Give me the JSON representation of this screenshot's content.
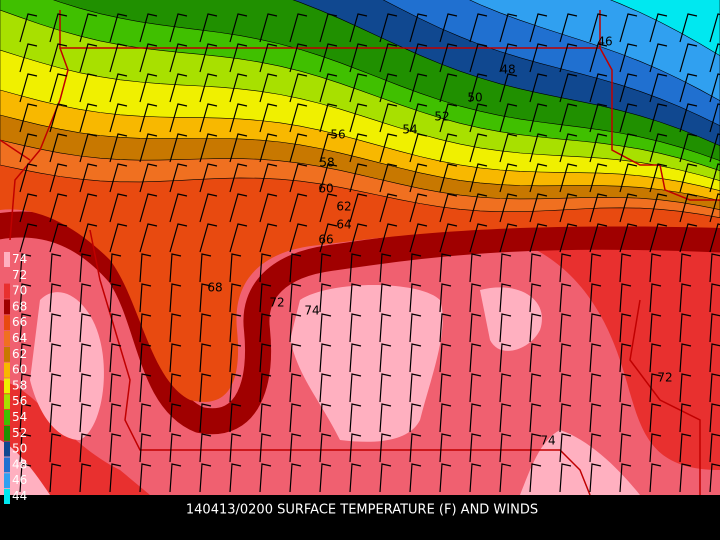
{
  "title": "140413/0200 SURFACE TEMPERATURE (F) AND WINDS",
  "legend": [
    {
      "label": "74",
      "color": "#ffb0c0"
    },
    {
      "label": "72",
      "color": "#f06070"
    },
    {
      "label": "70",
      "color": "#e8302f"
    },
    {
      "label": "68",
      "color": "#a00000"
    },
    {
      "label": "66",
      "color": "#e84a10"
    },
    {
      "label": "64",
      "color": "#f07020"
    },
    {
      "label": "62",
      "color": "#c87800"
    },
    {
      "label": "60",
      "color": "#f8b800"
    },
    {
      "label": "58",
      "color": "#f0f000"
    },
    {
      "label": "56",
      "color": "#a8e000"
    },
    {
      "label": "54",
      "color": "#40c000"
    },
    {
      "label": "52",
      "color": "#209000"
    },
    {
      "label": "50",
      "color": "#104890"
    },
    {
      "label": "48",
      "color": "#2070d0"
    },
    {
      "label": "46",
      "color": "#30a0f0"
    },
    {
      "label": "44",
      "color": "#00e8f0"
    }
  ],
  "contour_labels": [
    "46",
    "48",
    "50",
    "52",
    "54",
    "56",
    "58",
    "60",
    "62",
    "64",
    "66",
    "68",
    "72",
    "74",
    "72",
    "74"
  ]
}
